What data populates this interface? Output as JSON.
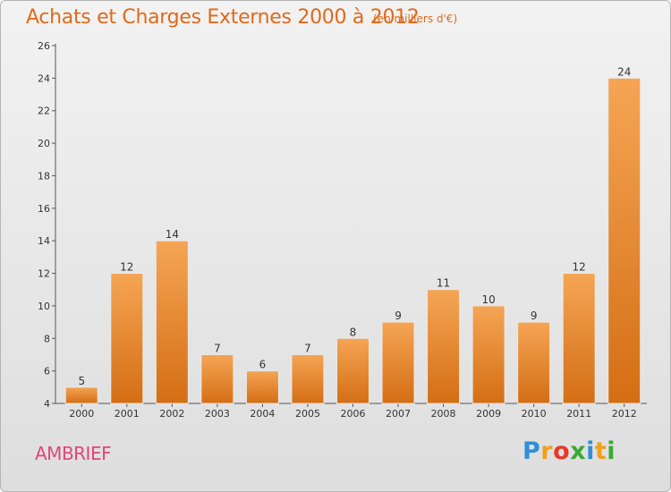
{
  "header": {
    "title": "Achats et Charges Externes 2000 à 2012",
    "subtitle": "(en milliers d'€)"
  },
  "footer": {
    "commune": "AMBRIEF",
    "logo_letters": [
      {
        "ch": "P",
        "color": "#2f8fd8"
      },
      {
        "ch": "r",
        "color": "#f0a020"
      },
      {
        "ch": "o",
        "color": "#e8392c"
      },
      {
        "ch": "x",
        "color": "#3aaa35"
      },
      {
        "ch": "i",
        "color": "#2f8fd8"
      },
      {
        "ch": "t",
        "color": "#f0a020"
      },
      {
        "ch": "i",
        "color": "#3aaa35"
      }
    ]
  },
  "chart_data": {
    "type": "bar",
    "categories": [
      "2000",
      "2001",
      "2002",
      "2003",
      "2004",
      "2005",
      "2006",
      "2007",
      "2008",
      "2009",
      "2010",
      "2011",
      "2012"
    ],
    "values": [
      5,
      12,
      14,
      7,
      6,
      7,
      8,
      9,
      11,
      10,
      9,
      12,
      24
    ],
    "ylim": [
      4,
      26
    ],
    "yticks": [
      4,
      6,
      8,
      10,
      12,
      14,
      16,
      18,
      20,
      22,
      24,
      26
    ],
    "grid": false,
    "bar_color_top": "#f5a555",
    "bar_color_bottom": "#d46e14"
  }
}
